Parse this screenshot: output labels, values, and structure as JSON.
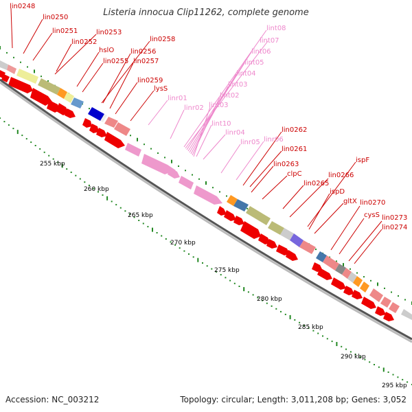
{
  "title": "Listeria innocua Clip11262, complete genome",
  "footer": {
    "accession": "Accession: NC_003212",
    "summary": "Topology: circular; Length: 3,011,208 bp; Genes: 3,052"
  },
  "colors": {
    "background": "#ffffff",
    "gene_label": "#cc0000",
    "rna_label": "#ee88cc",
    "arrow_red": "#ee0000",
    "arrow_pink": "#ee99cc",
    "backbone": "#888888",
    "tick_green": "#228822"
  },
  "scale_labels": [
    {
      "kbp": 255,
      "text": "255 kbp"
    },
    {
      "kbp": 260,
      "text": "260 kbp"
    },
    {
      "kbp": 265,
      "text": "265 kbp"
    },
    {
      "kbp": 270,
      "text": "270 kbp"
    },
    {
      "kbp": 275,
      "text": "275 kbp"
    },
    {
      "kbp": 280,
      "text": "280 kbp"
    },
    {
      "kbp": 285,
      "text": "285 kbp"
    },
    {
      "kbp": 290,
      "text": "290 kbp"
    },
    {
      "kbp": 295,
      "text": "295 kbp"
    }
  ],
  "gene_labels": [
    "lin0248",
    "lin0250",
    "lin0251",
    "lin0253",
    "lin0252",
    "hslO",
    "lin0258",
    "lin0256",
    "lin0255",
    "lin0257",
    "lin0259",
    "lysS",
    "lin0262",
    "lin0261",
    "lin0263",
    "clpC",
    "lin0265",
    "lin0266",
    "ispF",
    "ispD",
    "gltX",
    "lin0270",
    "cysS",
    "lin0273",
    "lin0274"
  ],
  "rna_labels": [
    "lint08",
    "lint07",
    "lint06",
    "lint05",
    "lint04",
    "lint03",
    "lint02",
    "linr01",
    "linr02",
    "lint03",
    "lint10",
    "linr04",
    "linr05",
    "linr06"
  ]
}
